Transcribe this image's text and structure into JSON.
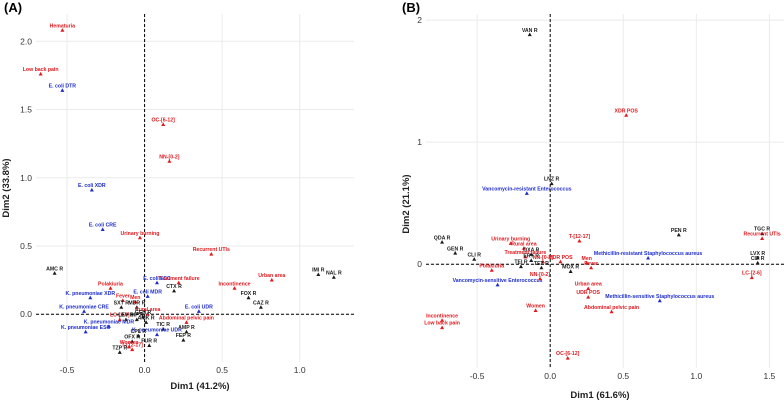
{
  "colors": {
    "black": "#1a1a1a",
    "red": "#e0191e",
    "blue": "#1f2ec9",
    "grid": "#ebebeb"
  },
  "chart_data": [
    {
      "type": "scatter",
      "panel": "(A)",
      "xlabel": "Dim1 (41.2%)",
      "ylabel": "Dim2 (33.8%)",
      "xlim": [
        -0.7,
        1.35
      ],
      "ylim": [
        -0.35,
        2.2
      ],
      "xticks": [
        "-0.5",
        "0.0",
        "0.5",
        "1.0"
      ],
      "xtick_values": [
        -0.5,
        0.0,
        0.5,
        1.0
      ],
      "yticks": [
        "0.0",
        "0.5",
        "1.0",
        "1.5",
        "2.0"
      ],
      "ytick_values": [
        0.0,
        0.5,
        1.0,
        1.5,
        2.0
      ],
      "points": [
        {
          "label": "Hematuria",
          "x": -0.53,
          "y": 2.08,
          "color": "red"
        },
        {
          "label": "Low back pain",
          "x": -0.67,
          "y": 1.76,
          "color": "red"
        },
        {
          "label": "E. coli DTR",
          "x": -0.53,
          "y": 1.64,
          "color": "blue"
        },
        {
          "label": "OC-[6-12]",
          "x": 0.12,
          "y": 1.39,
          "color": "red"
        },
        {
          "label": "NN-[0-2]",
          "x": 0.16,
          "y": 1.12,
          "color": "red"
        },
        {
          "label": "E. coli XDR",
          "x": -0.34,
          "y": 0.91,
          "color": "blue"
        },
        {
          "label": "E. coli CRE",
          "x": -0.27,
          "y": 0.62,
          "color": "blue"
        },
        {
          "label": "Urinary burning",
          "x": -0.03,
          "y": 0.56,
          "color": "red"
        },
        {
          "label": "Recurrent UTIs",
          "x": 0.43,
          "y": 0.44,
          "color": "red"
        },
        {
          "label": "AMC R",
          "x": -0.58,
          "y": 0.3,
          "color": "black"
        },
        {
          "label": "IMI R",
          "x": 1.12,
          "y": 0.29,
          "color": "black"
        },
        {
          "label": "NAL R",
          "x": 1.22,
          "y": 0.27,
          "color": "black"
        },
        {
          "label": "Urban area",
          "x": 0.82,
          "y": 0.25,
          "color": "red"
        },
        {
          "label": "E. coli ESC",
          "x": 0.08,
          "y": 0.23,
          "color": "blue"
        },
        {
          "label": "Treatment failure",
          "x": 0.22,
          "y": 0.23,
          "color": "red"
        },
        {
          "label": "CTX R",
          "x": 0.19,
          "y": 0.17,
          "color": "black"
        },
        {
          "label": "Incontinence",
          "x": 0.58,
          "y": 0.19,
          "color": "red"
        },
        {
          "label": "Polakiuria",
          "x": -0.22,
          "y": 0.19,
          "color": "red"
        },
        {
          "label": "E. coli MDR",
          "x": 0.02,
          "y": 0.13,
          "color": "blue"
        },
        {
          "label": "K. pneumoniae XDR",
          "x": -0.35,
          "y": 0.12,
          "color": "blue"
        },
        {
          "label": "Fever",
          "x": -0.14,
          "y": 0.1,
          "color": "red"
        },
        {
          "label": "Men",
          "x": -0.06,
          "y": 0.09,
          "color": "red"
        },
        {
          "label": "FOX R",
          "x": 0.67,
          "y": 0.12,
          "color": "black"
        },
        {
          "label": "CAZ R",
          "x": 0.75,
          "y": 0.05,
          "color": "black"
        },
        {
          "label": "SXT R",
          "x": -0.15,
          "y": 0.05,
          "color": "black"
        },
        {
          "label": "MDR R",
          "x": -0.05,
          "y": 0.05,
          "color": "black"
        },
        {
          "label": "K. pneumoniae CRE",
          "x": -0.39,
          "y": 0.02,
          "color": "blue"
        },
        {
          "label": "E. coli UDR",
          "x": 0.35,
          "y": 0.02,
          "color": "blue"
        },
        {
          "label": "Rural area",
          "x": 0.02,
          "y": 0.0,
          "color": "red"
        },
        {
          "label": "GEN R",
          "x": -0.01,
          "y": -0.02,
          "color": "black"
        },
        {
          "label": "LC-[2-6]",
          "x": -0.16,
          "y": -0.04,
          "color": "red"
        },
        {
          "label": "LEV R",
          "x": -0.12,
          "y": -0.04,
          "color": "black"
        },
        {
          "label": "CIP R",
          "x": -0.05,
          "y": -0.04,
          "color": "black"
        },
        {
          "label": "AMK R",
          "x": 0.01,
          "y": -0.06,
          "color": "black"
        },
        {
          "label": "Abdominal pelvic pain",
          "x": 0.27,
          "y": -0.06,
          "color": "red"
        },
        {
          "label": "K. pneumoniae MDR",
          "x": -0.23,
          "y": -0.09,
          "color": "blue"
        },
        {
          "label": "TIC R",
          "x": 0.12,
          "y": -0.11,
          "color": "black"
        },
        {
          "label": "K. pneumoniae ESC",
          "x": -0.38,
          "y": -0.13,
          "color": "blue"
        },
        {
          "label": "K. pneumoniae UDR",
          "x": 0.08,
          "y": -0.15,
          "color": "blue"
        },
        {
          "label": "AMP R",
          "x": 0.27,
          "y": -0.13,
          "color": "black"
        },
        {
          "label": "CPL R",
          "x": -0.04,
          "y": -0.16,
          "color": "black"
        },
        {
          "label": "OFX R",
          "x": -0.08,
          "y": -0.2,
          "color": "black"
        },
        {
          "label": "FEP R",
          "x": 0.25,
          "y": -0.19,
          "color": "black"
        },
        {
          "label": "Women",
          "x": -0.1,
          "y": -0.24,
          "color": "red"
        },
        {
          "label": "FUR R",
          "x": 0.03,
          "y": -0.23,
          "color": "black"
        },
        {
          "label": "T-[12-17]",
          "x": -0.08,
          "y": -0.26,
          "color": "red"
        },
        {
          "label": "TZP R",
          "x": -0.16,
          "y": -0.28,
          "color": "black"
        }
      ]
    },
    {
      "type": "scatter",
      "panel": "(B)",
      "xlabel": "Dim1 (61.6%)",
      "ylabel": "Dim2 (21.1%)",
      "xlim": [
        -0.85,
        1.6
      ],
      "ylim": [
        -0.85,
        2.05
      ],
      "xticks": [
        "-0.5",
        "0.0",
        "0.5",
        "1.0",
        "1.5"
      ],
      "xtick_values": [
        -0.5,
        0.0,
        0.5,
        1.0,
        1.5
      ],
      "yticks": [
        "0",
        "1",
        "2"
      ],
      "ytick_values": [
        0,
        1,
        2
      ],
      "points": [
        {
          "label": "VAN R",
          "x": -0.14,
          "y": 1.88,
          "color": "black"
        },
        {
          "label": "XDR POS",
          "x": 0.52,
          "y": 1.22,
          "color": "red"
        },
        {
          "label": "LNZ R",
          "x": 0.01,
          "y": 0.66,
          "color": "black"
        },
        {
          "label": "Vancomycin-resistant Enterococcus",
          "x": -0.16,
          "y": 0.58,
          "color": "blue"
        },
        {
          "label": "PEN R",
          "x": 0.88,
          "y": 0.24,
          "color": "black"
        },
        {
          "label": "TGC R",
          "x": 1.45,
          "y": 0.25,
          "color": "black"
        },
        {
          "label": "Recurrent UTIs",
          "x": 1.45,
          "y": 0.21,
          "color": "red"
        },
        {
          "label": "QDA R",
          "x": -0.74,
          "y": 0.18,
          "color": "black"
        },
        {
          "label": "T-[12-17]",
          "x": 0.2,
          "y": 0.19,
          "color": "red"
        },
        {
          "label": "Urinary burning",
          "x": -0.27,
          "y": 0.17,
          "color": "red"
        },
        {
          "label": "Rural area",
          "x": -0.18,
          "y": 0.13,
          "color": "red"
        },
        {
          "label": "GEN R",
          "x": -0.65,
          "y": 0.09,
          "color": "black"
        },
        {
          "label": "Methicillin-resistant Staphylococcus aureus",
          "x": 0.67,
          "y": 0.05,
          "color": "blue"
        },
        {
          "label": "LVX R",
          "x": 1.42,
          "y": 0.05,
          "color": "black"
        },
        {
          "label": "CIP R",
          "x": 1.42,
          "y": 0.01,
          "color": "black"
        },
        {
          "label": "OXA R",
          "x": -0.13,
          "y": 0.08,
          "color": "black"
        },
        {
          "label": "Treatment failure",
          "x": -0.17,
          "y": 0.06,
          "color": "red"
        },
        {
          "label": "CLI R",
          "x": -0.52,
          "y": 0.04,
          "color": "black"
        },
        {
          "label": "ERY R",
          "x": -0.13,
          "y": 0.03,
          "color": "black"
        },
        {
          "label": "NN-[0-2]",
          "x": -0.05,
          "y": 0.02,
          "color": "red"
        },
        {
          "label": "MDR POS",
          "x": 0.07,
          "y": 0.02,
          "color": "red"
        },
        {
          "label": "Men",
          "x": 0.25,
          "y": 0.01,
          "color": "red"
        },
        {
          "label": "TEI R",
          "x": -0.2,
          "y": -0.02,
          "color": "black"
        },
        {
          "label": "TET R",
          "x": -0.06,
          "y": -0.03,
          "color": "black"
        },
        {
          "label": "Fever",
          "x": 0.28,
          "y": -0.03,
          "color": "red"
        },
        {
          "label": "Polakiuria",
          "x": -0.4,
          "y": -0.05,
          "color": "red"
        },
        {
          "label": "MOX R",
          "x": 0.14,
          "y": -0.06,
          "color": "black"
        },
        {
          "label": "LC-[2-6]",
          "x": 1.38,
          "y": -0.11,
          "color": "red"
        },
        {
          "label": "Vancomycin-sensitive Enterococcus",
          "x": -0.36,
          "y": -0.17,
          "color": "blue"
        },
        {
          "label": "NN-[0-2]",
          "x": -0.07,
          "y": -0.12,
          "color": "red"
        },
        {
          "label": "Urban area",
          "x": 0.26,
          "y": -0.2,
          "color": "red"
        },
        {
          "label": "UDR POS",
          "x": 0.26,
          "y": -0.27,
          "color": "red"
        },
        {
          "label": "Methicillin-sensitive Staphylococcus aureus",
          "x": 0.75,
          "y": -0.3,
          "color": "blue"
        },
        {
          "label": "Women",
          "x": -0.1,
          "y": -0.38,
          "color": "red"
        },
        {
          "label": "Abdominal pelvic pain",
          "x": 0.42,
          "y": -0.39,
          "color": "red"
        },
        {
          "label": "Incontinence",
          "x": -0.74,
          "y": -0.46,
          "color": "red"
        },
        {
          "label": "Low back pain",
          "x": -0.74,
          "y": -0.52,
          "color": "red"
        },
        {
          "label": "OC-[6-12]",
          "x": 0.12,
          "y": -0.77,
          "color": "red"
        }
      ]
    }
  ]
}
